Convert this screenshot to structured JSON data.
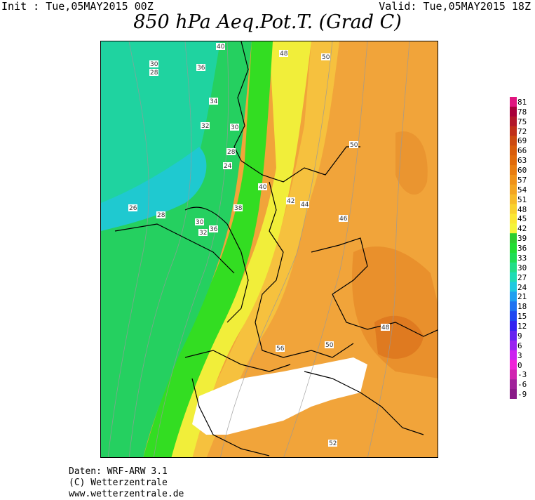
{
  "header": {
    "init": "Init : Tue,05MAY2015 00Z",
    "valid": "Valid: Tue,05MAY2015 18Z",
    "title": "850 hPa Aeq.Pot.T. (Grad C)"
  },
  "colorbar": {
    "labels": [
      "81",
      "78",
      "75",
      "72",
      "69",
      "66",
      "63",
      "60",
      "57",
      "54",
      "51",
      "48",
      "45",
      "42",
      "39",
      "36",
      "33",
      "30",
      "27",
      "24",
      "21",
      "18",
      "15",
      "12",
      "9",
      "6",
      "3",
      "0",
      "-3",
      "-6",
      "-9"
    ],
    "colors": [
      "#e0157f",
      "#a8003a",
      "#b2182b",
      "#c0301a",
      "#cc4a10",
      "#d85c0a",
      "#e06a0a",
      "#e87d10",
      "#ef9218",
      "#f3a520",
      "#f7bb28",
      "#f9d22e",
      "#fbe733",
      "#f4f43a",
      "#2ecc2e",
      "#22dd33",
      "#1fdd55",
      "#22dd88",
      "#1fdbb5",
      "#1fc9e0",
      "#1f9ff0",
      "#1f72f0",
      "#1f48f0",
      "#3322f0",
      "#6622f0",
      "#9922f0",
      "#cc22f0",
      "#f022d8",
      "#d022b0",
      "#a0229a",
      "#8a1a88"
    ]
  },
  "map_labels": [
    "40",
    "48",
    "50",
    "30",
    "28",
    "36",
    "34",
    "32",
    "30",
    "28",
    "24",
    "26",
    "28",
    "30",
    "32",
    "36",
    "38",
    "40",
    "42",
    "44",
    "46",
    "50",
    "48",
    "50",
    "52",
    "56"
  ],
  "credits": {
    "line1": "Daten: WRF-ARW 3.1",
    "line2": "(C) Wetterzentrale",
    "line3": "www.wetterzentrale.de"
  }
}
